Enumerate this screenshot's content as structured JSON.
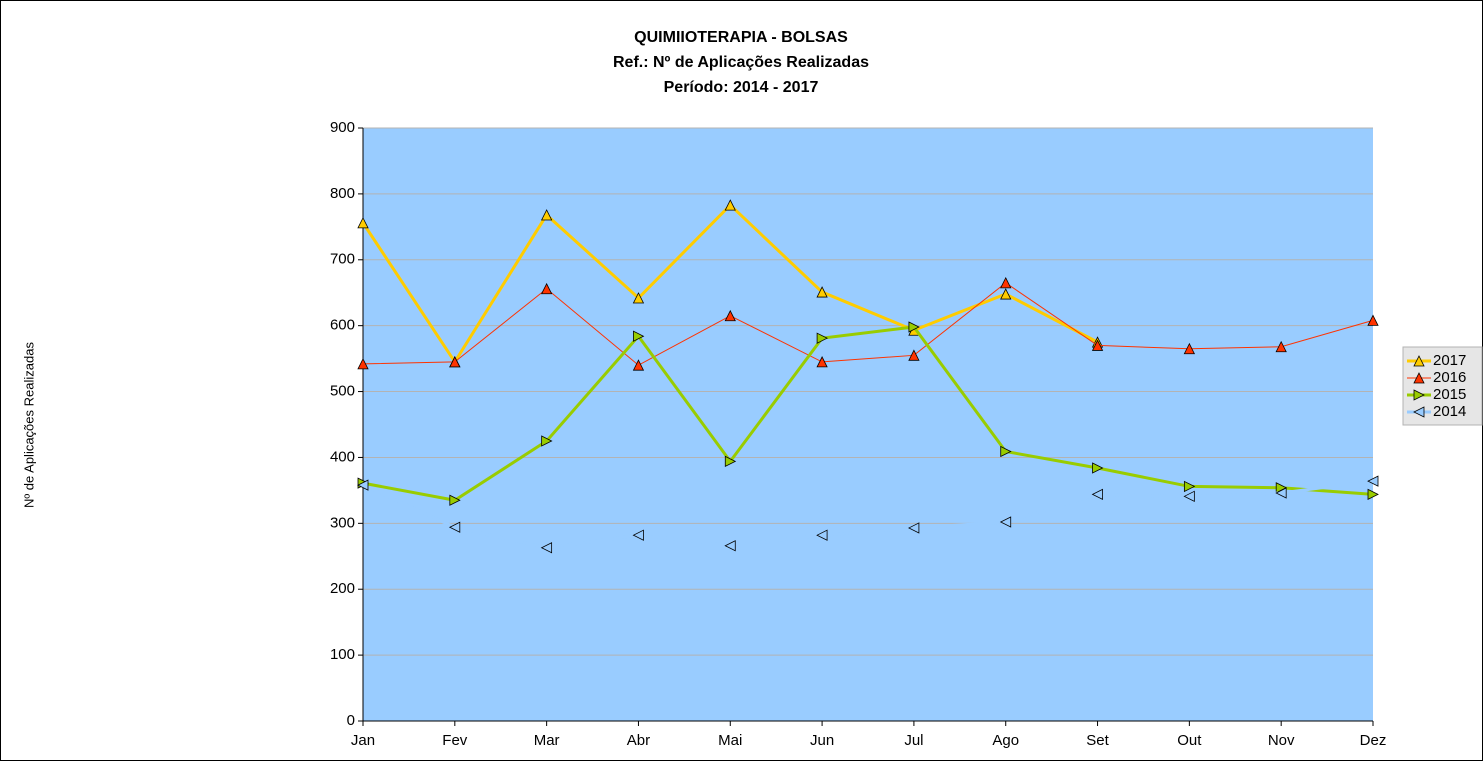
{
  "chart_data": {
    "type": "line",
    "title": "QUIMIIOTERAPIA - BOLSAS",
    "subtitle": [
      "Ref.: Nº de Aplicações Realizadas",
      "Período: 2014 - 2017"
    ],
    "y_label": "Nº de Aplicações Realizadas",
    "categories": [
      "Jan",
      "Fev",
      "Mar",
      "Abr",
      "Mai",
      "Jun",
      "Jul",
      "Ago",
      "Set",
      "Out",
      "Nov",
      "Dez"
    ],
    "series": [
      {
        "name": "2017",
        "color": "#ffcc00",
        "marker": "triangle-up",
        "values": [
          756,
          545,
          768,
          642,
          783,
          651,
          593,
          648,
          575,
          null,
          null,
          null
        ]
      },
      {
        "name": "2016",
        "color": "#ff3300",
        "marker": "triangle-up",
        "values": [
          542,
          545,
          656,
          540,
          615,
          545,
          555,
          665,
          570,
          565,
          568,
          608
        ]
      },
      {
        "name": "2015",
        "color": "#99cc00",
        "marker": "triangle-right",
        "values": [
          361,
          335,
          425,
          584,
          394,
          581,
          598,
          409,
          384,
          356,
          354,
          344
        ]
      },
      {
        "name": "2014",
        "color": "#99ccff",
        "marker": "triangle-left",
        "values": [
          358,
          294,
          263,
          282,
          266,
          282,
          293,
          302,
          344,
          341,
          346,
          364
        ]
      }
    ],
    "ylim": [
      0,
      900
    ],
    "yticks": [
      0,
      100,
      200,
      300,
      400,
      500,
      600,
      700,
      800,
      900
    ],
    "grid": true,
    "plot_background": "#99ccff",
    "legend": "right"
  }
}
